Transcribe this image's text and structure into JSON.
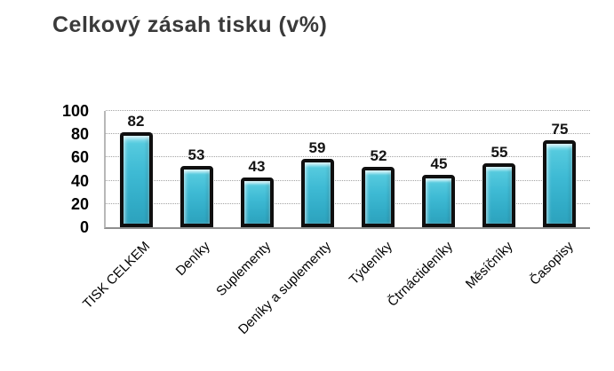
{
  "page": {
    "background_color": "#ffffff",
    "title_color": "#3a3a3a",
    "axis_color": "#8f8f8f",
    "grid_color": "#a3a3a3",
    "bar_fill_color": "#3ebad4",
    "bar_border_color": "#0f0f0f"
  },
  "title": "Celkový zásah tisku (v%)",
  "chart_data": {
    "type": "bar",
    "title": "Celkový zásah tisku (v%)",
    "categories": [
      "TISK CELKEM",
      "Deníky",
      "Suplementy",
      "Deníky a suplementy",
      "Týdeníky",
      "Čtrnáctideníky",
      "Měsíčníky",
      "Časopisy"
    ],
    "values": [
      82,
      53,
      43,
      59,
      52,
      45,
      55,
      75
    ],
    "xlabel": "",
    "ylabel": "",
    "ylim": [
      0,
      100
    ],
    "yticks": [
      0,
      20,
      40,
      60,
      80,
      100
    ],
    "grid": "horizontal-dotted",
    "legend_position": "none",
    "value_labels_shown": true,
    "category_label_rotation_deg": -45
  }
}
